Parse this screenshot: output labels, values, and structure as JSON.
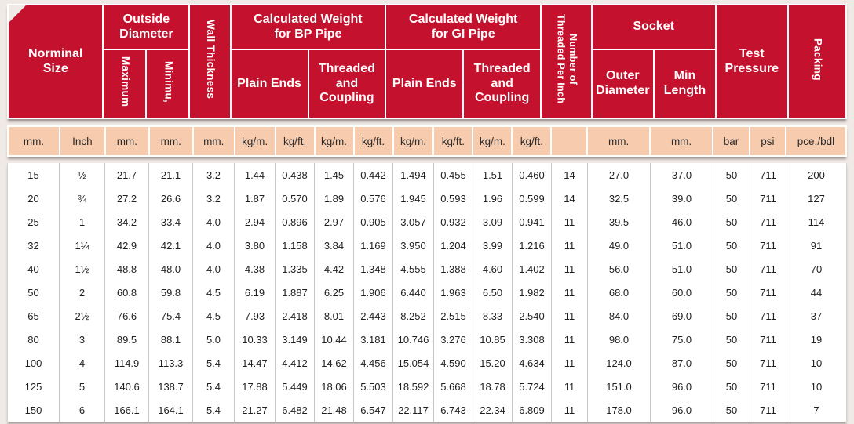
{
  "colors": {
    "header_red": "#C4112D",
    "units_peach": "#F7CBAE",
    "page_background": "#F0EAE6"
  },
  "table": {
    "header": {
      "norminal_size": "Norminal\nSize",
      "outside_diameter": "Outside\nDiameter",
      "maximum": "Maximum",
      "minimum": "Minimu,",
      "wall_thickness": "Wall Thickness",
      "bp_weight": "Calculated Weight\nfor BP Pipe",
      "gi_weight": "Calculated Weight\nfor GI Pipe",
      "bp_plain_ends": "Plain Ends",
      "bp_threaded_coupling": "Threaded\nand\nCoupling",
      "gi_plain_ends": "Plain Ends",
      "gi_threaded_coupling": "Threaded\nand\nCoupling",
      "threads_per_inch": "Number of\nThreaded Per Inch",
      "socket": "Socket",
      "socket_outer_diameter": "Outer\nDiameter",
      "socket_min_length": "Min\nLength",
      "test_pressure": "Test\nPressure",
      "packing": "Packing"
    },
    "units": [
      "mm.",
      "Inch",
      "mm.",
      "mm.",
      "mm.",
      "kg/m.",
      "kg/ft.",
      "kg/m.",
      "kg/ft.",
      "kg/m.",
      "kg/ft.",
      "kg/m.",
      "kg/ft.",
      "",
      "mm.",
      "mm.",
      "bar",
      "psi",
      "pce./bdl"
    ],
    "rows": [
      [
        "15",
        "½",
        "21.7",
        "21.1",
        "3.2",
        "1.44",
        "0.438",
        "1.45",
        "0.442",
        "1.494",
        "0.455",
        "1.51",
        "0.460",
        "14",
        "27.0",
        "37.0",
        "50",
        "711",
        "200"
      ],
      [
        "20",
        "¾",
        "27.2",
        "26.6",
        "3.2",
        "1.87",
        "0.570",
        "1.89",
        "0.576",
        "1.945",
        "0.593",
        "1.96",
        "0.599",
        "14",
        "32.5",
        "39.0",
        "50",
        "711",
        "127"
      ],
      [
        "25",
        "1",
        "34.2",
        "33.4",
        "4.0",
        "2.94",
        "0.896",
        "2.97",
        "0.905",
        "3.057",
        "0.932",
        "3.09",
        "0.941",
        "11",
        "39.5",
        "46.0",
        "50",
        "711",
        "114"
      ],
      [
        "32",
        "1¼",
        "42.9",
        "42.1",
        "4.0",
        "3.80",
        "1.158",
        "3.84",
        "1.169",
        "3.950",
        "1.204",
        "3.99",
        "1.216",
        "11",
        "49.0",
        "51.0",
        "50",
        "711",
        "91"
      ],
      [
        "40",
        "1½",
        "48.8",
        "48.0",
        "4.0",
        "4.38",
        "1.335",
        "4.42",
        "1.348",
        "4.555",
        "1.388",
        "4.60",
        "1.402",
        "11",
        "56.0",
        "51.0",
        "50",
        "711",
        "70"
      ],
      [
        "50",
        "2",
        "60.8",
        "59.8",
        "4.5",
        "6.19",
        "1.887",
        "6.25",
        "1.906",
        "6.440",
        "1.963",
        "6.50",
        "1.982",
        "11",
        "68.0",
        "60.0",
        "50",
        "711",
        "44"
      ],
      [
        "65",
        "2½",
        "76.6",
        "75.4",
        "4.5",
        "7.93",
        "2.418",
        "8.01",
        "2.443",
        "8.252",
        "2.515",
        "8.33",
        "2.540",
        "11",
        "84.0",
        "69.0",
        "50",
        "711",
        "37"
      ],
      [
        "80",
        "3",
        "89.5",
        "88.1",
        "5.0",
        "10.33",
        "3.149",
        "10.44",
        "3.181",
        "10.746",
        "3.276",
        "10.85",
        "3.308",
        "11",
        "98.0",
        "75.0",
        "50",
        "711",
        "19"
      ],
      [
        "100",
        "4",
        "114.9",
        "113.3",
        "5.4",
        "14.47",
        "4.412",
        "14.62",
        "4.456",
        "15.054",
        "4.590",
        "15.20",
        "4.634",
        "11",
        "124.0",
        "87.0",
        "50",
        "711",
        "10"
      ],
      [
        "125",
        "5",
        "140.6",
        "138.7",
        "5.4",
        "17.88",
        "5.449",
        "18.06",
        "5.503",
        "18.592",
        "5.668",
        "18.78",
        "5.724",
        "11",
        "151.0",
        "96.0",
        "50",
        "711",
        "10"
      ],
      [
        "150",
        "6",
        "166.1",
        "164.1",
        "5.4",
        "21.27",
        "6.482",
        "21.48",
        "6.547",
        "22.117",
        "6.743",
        "22.34",
        "6.809",
        "11",
        "178.0",
        "96.0",
        "50",
        "711",
        "7"
      ]
    ]
  }
}
